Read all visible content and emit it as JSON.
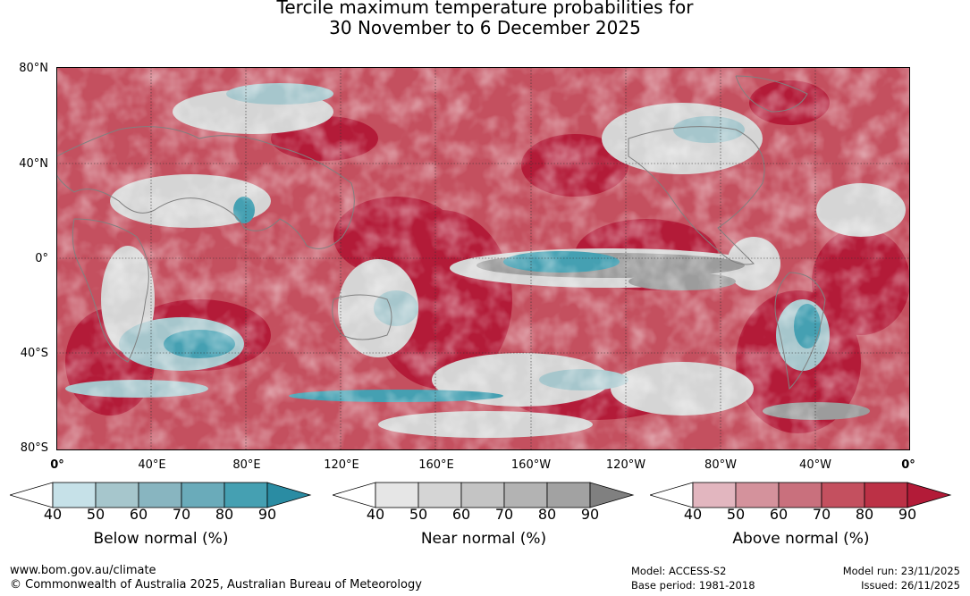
{
  "title_line1": "Tercile maximum temperature probabilities for",
  "title_line2": "30 November to 6 December 2025",
  "lat_labels": [
    "80°N",
    "40°N",
    "0°",
    "40°S",
    "80°S"
  ],
  "lon_labels": [
    "0°",
    "40°E",
    "80°E",
    "120°E",
    "160°E",
    "160°W",
    "120°W",
    "80°W",
    "40°W",
    "0°"
  ],
  "colorbars": [
    {
      "title": "Below normal (%)",
      "ticks": [
        "40",
        "50",
        "60",
        "70",
        "80",
        "90"
      ],
      "colors": [
        "#ffffff",
        "#c6e1e8",
        "#a6c6cc",
        "#88b5c0",
        "#6aabba",
        "#45a0b2",
        "#2a8ca3"
      ]
    },
    {
      "title": "Near normal (%)",
      "ticks": [
        "40",
        "50",
        "60",
        "70",
        "80",
        "90"
      ],
      "colors": [
        "#ffffff",
        "#e6e6e6",
        "#d5d5d5",
        "#c4c4c4",
        "#b3b3b3",
        "#a2a2a2",
        "#808080"
      ]
    },
    {
      "title": "Above normal (%)",
      "ticks": [
        "40",
        "50",
        "60",
        "70",
        "80",
        "90"
      ],
      "colors": [
        "#ffffff",
        "#e2b6bf",
        "#d4929c",
        "#c9707d",
        "#c4505f",
        "#bc3146",
        "#b31b38"
      ]
    }
  ],
  "footer": {
    "website": "www.bom.gov.au/climate",
    "copyright": "© Commonwealth of Australia 2025, Australian Bureau of Meteorology",
    "model": "Model: ACCESS-S2",
    "base_period": "Base period: 1981-2018",
    "model_run": "Model run: 23/11/2025",
    "issued": "Issued: 26/11/2025"
  }
}
